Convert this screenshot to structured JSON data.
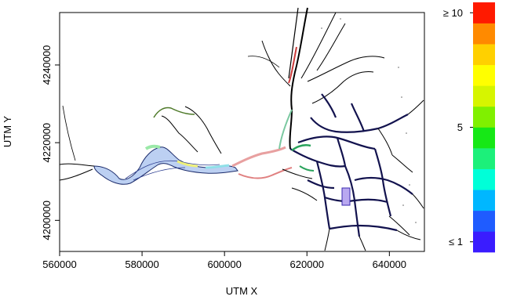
{
  "map": {
    "x_axis": {
      "label": "UTM X",
      "range": [
        560000,
        648500
      ],
      "ticks": [
        {
          "value": 560000,
          "label": "560000"
        },
        {
          "value": 580000,
          "label": "580000"
        },
        {
          "value": 600000,
          "label": "600000"
        },
        {
          "value": 620000,
          "label": "620000"
        },
        {
          "value": 640000,
          "label": "640000"
        }
      ]
    },
    "y_axis": {
      "label": "UTM Y",
      "range": [
        4192000,
        4253500
      ],
      "ticks": [
        {
          "value": 4200000,
          "label": "4200000"
        },
        {
          "value": 4220000,
          "label": "4220000"
        },
        {
          "value": 4240000,
          "label": "4240000"
        }
      ]
    },
    "colorbar": {
      "colors_bottom_to_top": [
        "#3a1cff",
        "#1f5cff",
        "#00b7ff",
        "#00ffd8",
        "#1cf07a",
        "#16e816",
        "#80f000",
        "#d6f500",
        "#ffff00",
        "#ffd000",
        "#ff8a00",
        "#ff1a00"
      ],
      "labels": [
        {
          "text": "≥ 10",
          "level": 1.0
        },
        {
          "text": "5",
          "level": 0.5
        },
        {
          "text": "≤ 1",
          "level": 0.0
        }
      ]
    },
    "colors": {
      "water_network": "#000000",
      "bay_fill": "#bcd0f2",
      "delta_blue": "#1a1ab0"
    }
  }
}
